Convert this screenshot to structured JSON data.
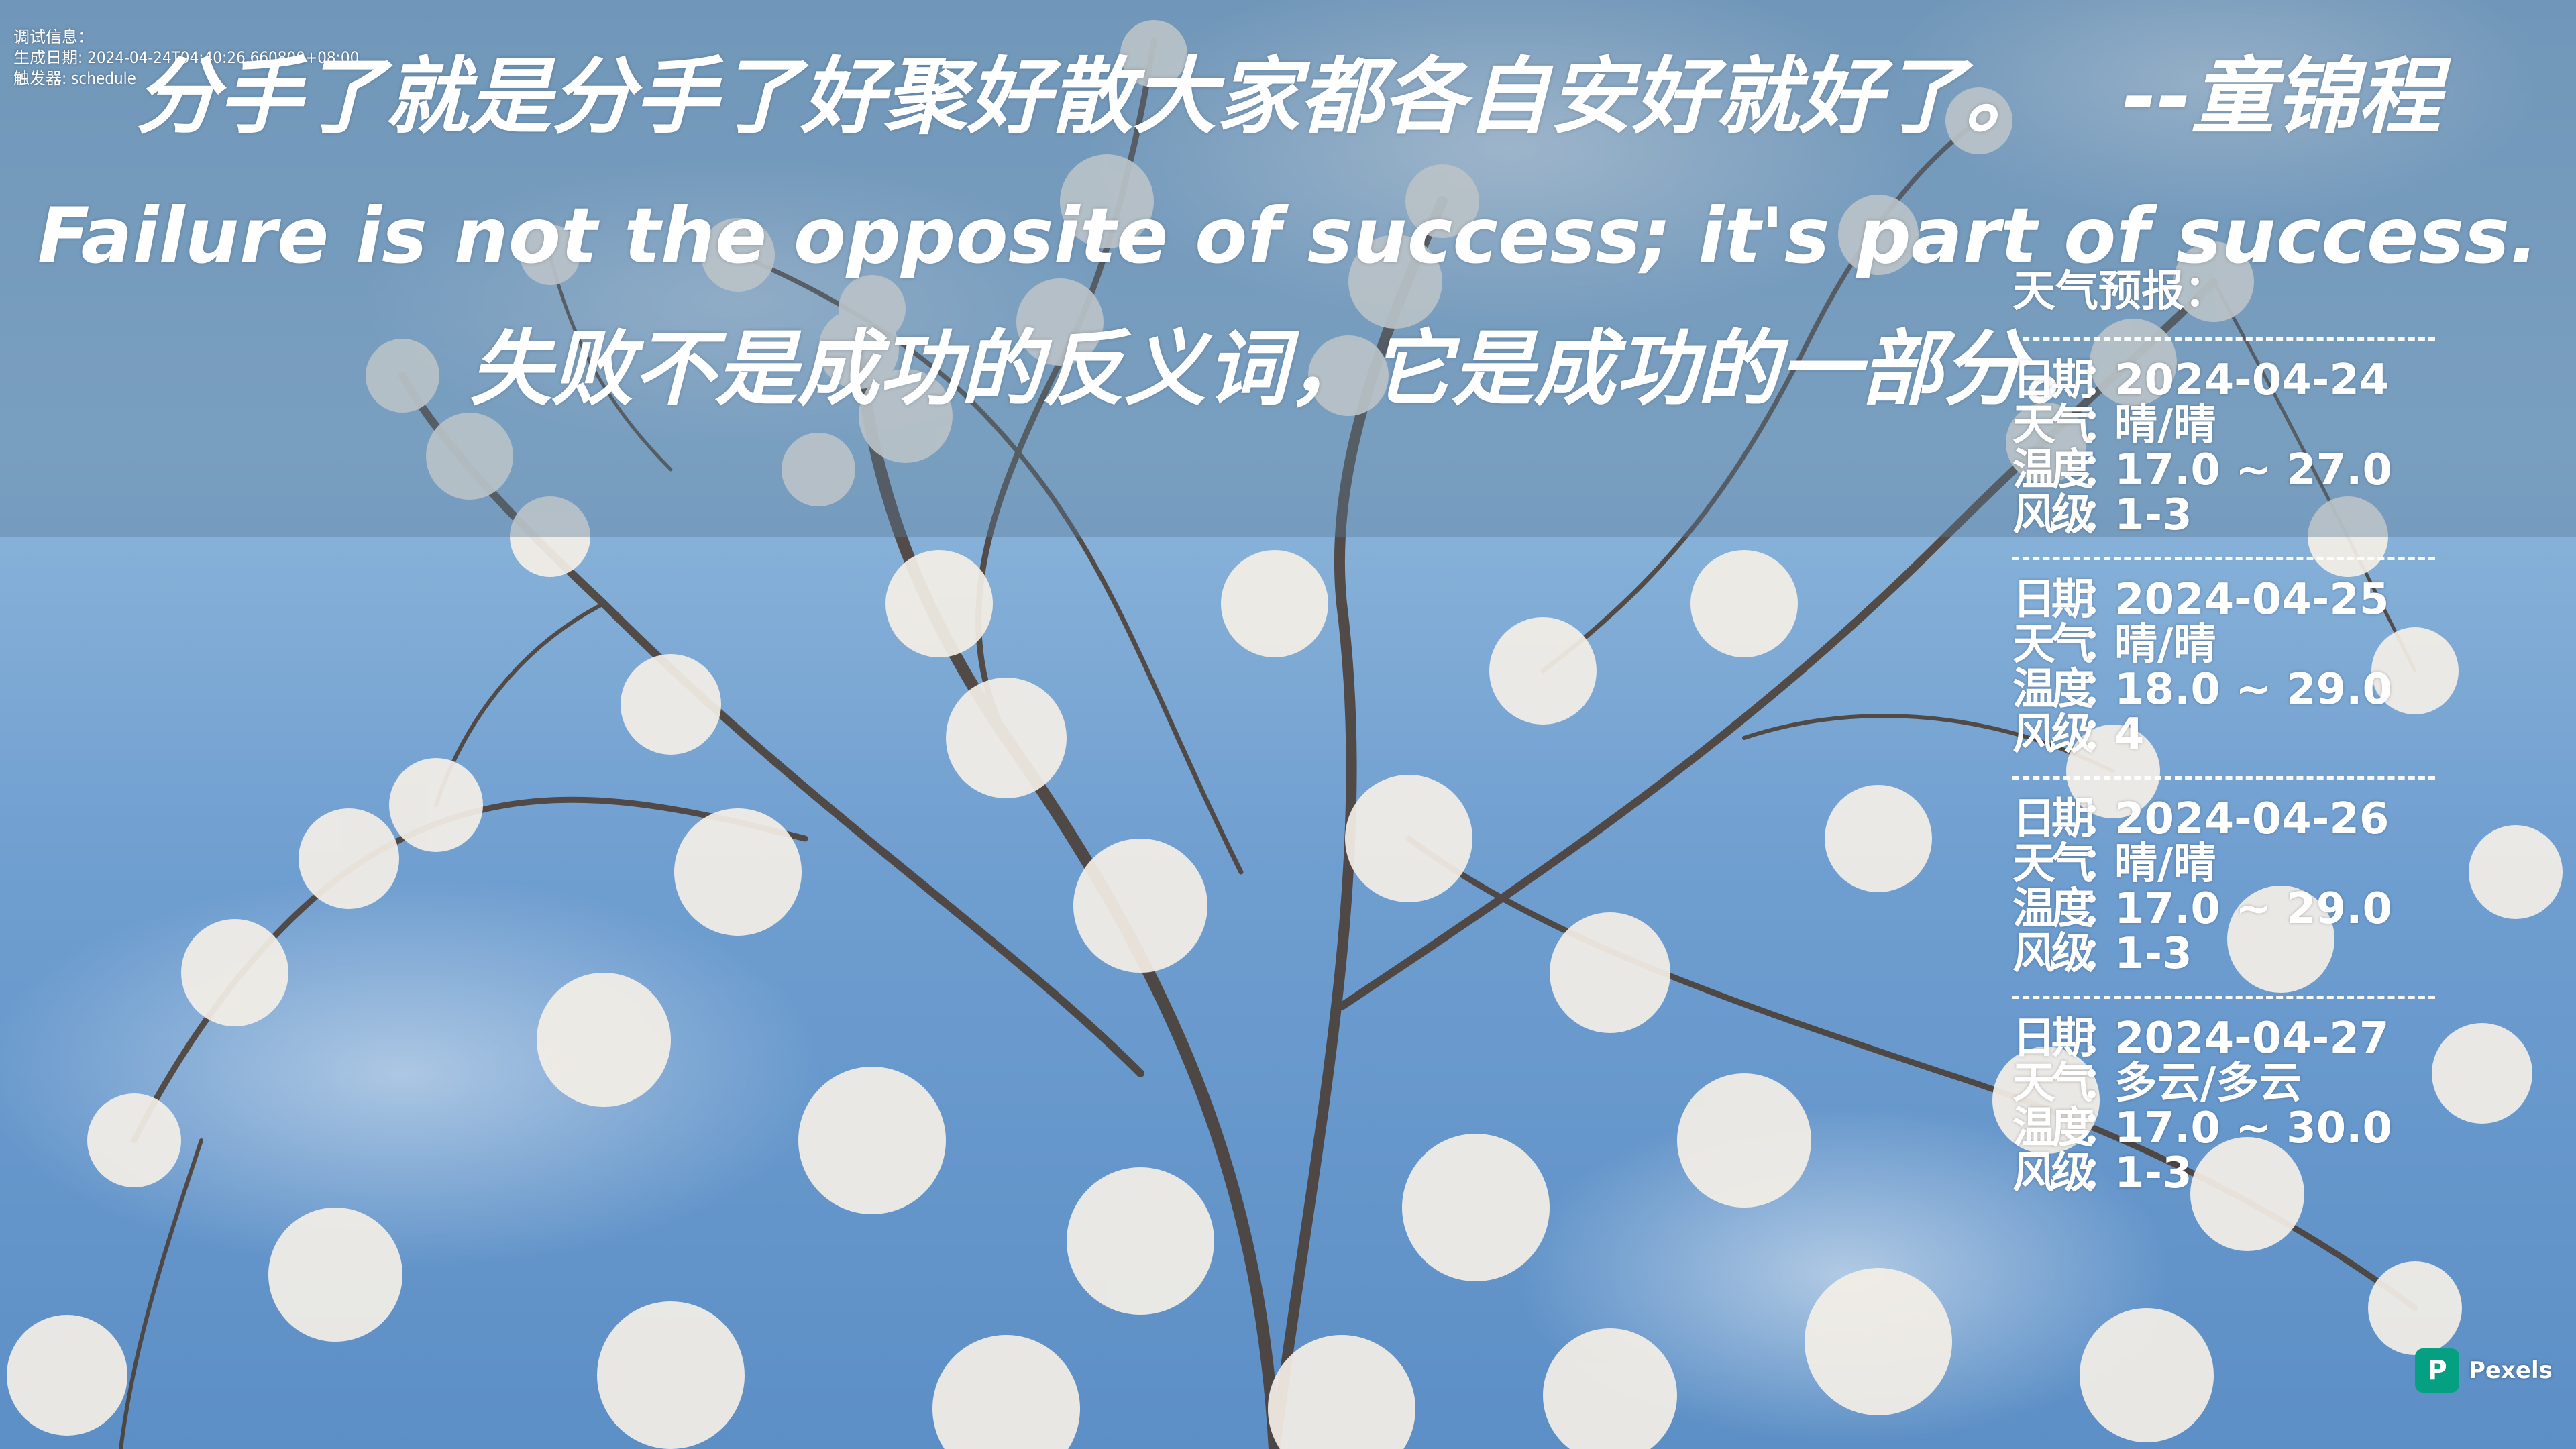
{
  "debug": {
    "line1": "调试信息：",
    "line2": "生成日期: 2024-04-24T04:40:26.660800+08:00",
    "line3": "触发器: schedule"
  },
  "quote": {
    "chinese": "分手了就是分手了好聚好散大家都各自安好就好了。",
    "author": "--童锦程",
    "english": "Failure is not the opposite of success; it's part of success.",
    "translation": "失败不是成功的反义词，它是成功的一部分。"
  },
  "weather": {
    "title": "天气预报：",
    "labels": {
      "date": "日期",
      "weather": "天气",
      "temp": "温度",
      "wind": "风级",
      "colon": "："
    },
    "days": [
      {
        "date": "2024-04-24",
        "weather": "晴/晴",
        "temp": "17.0 ~ 27.0",
        "wind": "1-3"
      },
      {
        "date": "2024-04-25",
        "weather": "晴/晴",
        "temp": "18.0 ~ 29.0",
        "wind": "4"
      },
      {
        "date": "2024-04-26",
        "weather": "晴/晴",
        "temp": "17.0 ~ 29.0",
        "wind": "1-3"
      },
      {
        "date": "2024-04-27",
        "weather": "多云/多云",
        "temp": "17.0 ~ 30.0",
        "wind": "1-3"
      }
    ]
  },
  "watermark": {
    "icon": "pexels-logo-icon",
    "logo_letter": "P",
    "text": "Pexels",
    "color": "#05a081"
  },
  "colors": {
    "text": "#ffffff",
    "sky": "#6f9fcb"
  }
}
